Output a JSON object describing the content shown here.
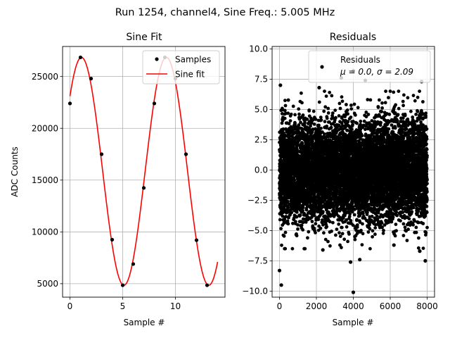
{
  "figure": {
    "suptitle": "Run 1254, channel4, Sine Freq.: 5.005 MHz"
  },
  "chart_data": [
    {
      "type": "line",
      "title": "Sine Fit",
      "xlabel": "Sample #",
      "ylabel": "ADC Counts",
      "xlim": [
        -0.7,
        14.7
      ],
      "ylim": [
        3700,
        27900
      ],
      "xticks": [
        0,
        5,
        10
      ],
      "yticks": [
        5000,
        10000,
        15000,
        20000,
        25000
      ],
      "grid": true,
      "legend": {
        "placement": "top-right",
        "entries": [
          "Samples",
          "Sine fit"
        ]
      },
      "series": [
        {
          "name": "Samples",
          "kind": "scatter",
          "x": [
            0,
            1,
            2,
            3,
            4,
            5,
            6,
            7,
            8,
            9,
            10,
            11,
            12,
            13
          ],
          "y": [
            22400,
            26850,
            24800,
            17500,
            9250,
            4850,
            6900,
            14250,
            22400,
            26850,
            24800,
            17500,
            9200,
            4850
          ]
        },
        {
          "name": "Sine fit",
          "kind": "line",
          "model": {
            "offset": 15850,
            "amplitude": 11000,
            "samples_per_cycle": 8.05,
            "phase_at_zero_rad": 0.72,
            "x_range": [
              0,
              14
            ]
          }
        }
      ]
    },
    {
      "type": "scatter",
      "title": "Residuals",
      "xlabel": "Sample #",
      "xlim": [
        -400,
        8400
      ],
      "ylim": [
        -10.5,
        10.2
      ],
      "xticks": [
        0,
        2000,
        4000,
        6000,
        8000
      ],
      "yticks": [
        -10.0,
        -7.5,
        -5.0,
        -2.5,
        0.0,
        2.5,
        5.0,
        7.5,
        10.0
      ],
      "grid": true,
      "legend": {
        "placement": "top-right",
        "entries": [
          "Residuals"
        ],
        "stats": "μ = 0.0, σ = 2.09"
      },
      "series": [
        {
          "name": "Residuals",
          "distribution": {
            "mean": 0.0,
            "std": 2.09,
            "n_samples": 8000,
            "x_range": [
              0,
              8000
            ]
          },
          "outliers": [
            {
              "x": 0,
              "y": -8.3
            },
            {
              "x": 100,
              "y": -9.5
            },
            {
              "x": 4000,
              "y": -10.1
            },
            {
              "x": 4000,
              "y": 8.2
            },
            {
              "x": 50,
              "y": 7.0
            },
            {
              "x": 3350,
              "y": 7.6
            },
            {
              "x": 4650,
              "y": 7.4
            },
            {
              "x": 7700,
              "y": 7.3
            },
            {
              "x": 6200,
              "y": -6.2
            },
            {
              "x": 3850,
              "y": -7.6
            },
            {
              "x": 4350,
              "y": -7.4
            },
            {
              "x": 7600,
              "y": -6.7
            },
            {
              "x": 7900,
              "y": -7.5
            },
            {
              "x": 2150,
              "y": 6.8
            },
            {
              "x": 2350,
              "y": -6.6
            }
          ]
        }
      ]
    }
  ]
}
